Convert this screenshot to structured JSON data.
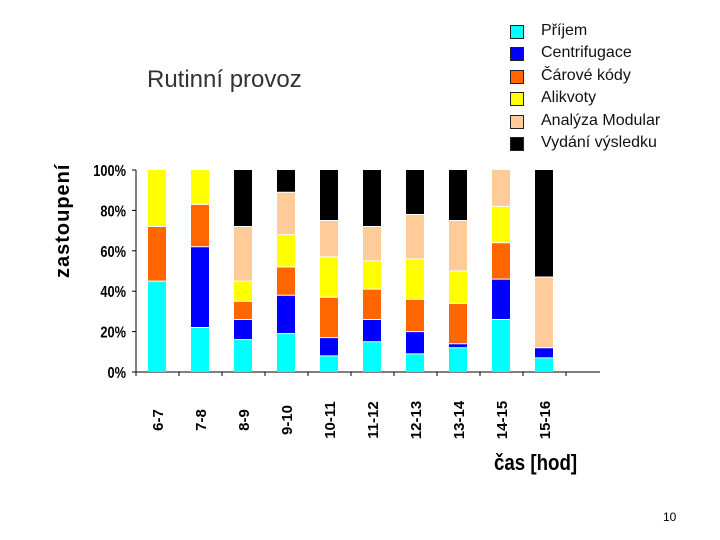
{
  "slide": {
    "title": "Rutinní provoz",
    "page_number": "10"
  },
  "chart_data": {
    "type": "bar",
    "stacked": true,
    "percent": true,
    "ylabel": "zastoupení",
    "xlabel": "čas [hod]",
    "ylim": [
      0,
      100
    ],
    "yticks": [
      "0%",
      "20%",
      "40%",
      "60%",
      "80%",
      "100%"
    ],
    "categories": [
      "6-7",
      "7-8",
      "8-9",
      "9-10",
      "10-11",
      "11-12",
      "12-13",
      "13-14",
      "14-15",
      "15-16"
    ],
    "legend_position": "top-right",
    "series": [
      {
        "name": "Příjem",
        "color": "#00ffff",
        "values": [
          45,
          22,
          16,
          19,
          8,
          15,
          9,
          12,
          26,
          7
        ]
      },
      {
        "name": "Centrifugace",
        "color": "#0000ff",
        "values": [
          0,
          40,
          10,
          19,
          9,
          11,
          11,
          2,
          20,
          5
        ]
      },
      {
        "name": "Čárové kódy",
        "color": "#ff6600",
        "values": [
          27,
          21,
          9,
          14,
          20,
          15,
          16,
          20,
          18,
          0
        ]
      },
      {
        "name": "Alikvoty",
        "color": "#ffff00",
        "values": [
          28,
          17,
          10,
          16,
          20,
          14,
          20,
          16,
          18,
          0
        ]
      },
      {
        "name": "Analýza Modular",
        "color": "#ffcc99",
        "values": [
          0,
          0,
          27,
          21,
          18,
          17,
          22,
          25,
          18,
          35
        ]
      },
      {
        "name": "Vydání výsledku",
        "color": "#000000",
        "values": [
          0,
          0,
          28,
          11,
          25,
          28,
          22,
          25,
          0,
          53
        ]
      }
    ]
  }
}
